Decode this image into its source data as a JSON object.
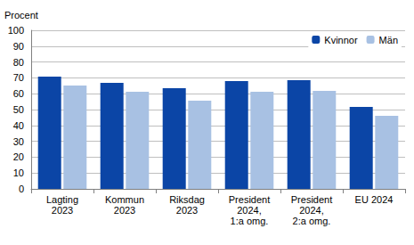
{
  "chart_data": {
    "type": "bar",
    "ylabel": "Procent",
    "categories": [
      "Lagting\n2023",
      "Kommun\n2023",
      "Riksdag\n2023",
      "President\n2024,\n1:a omg.",
      "President\n2024,\n2:a omg.",
      "EU 2024"
    ],
    "series": [
      {
        "name": "Kvinnor",
        "color": "#0b45a6",
        "values": [
          70.8,
          66.9,
          63.5,
          68.0,
          68.5,
          51.7
        ]
      },
      {
        "name": "Män",
        "color": "#a8c1e3",
        "values": [
          65.2,
          61.2,
          55.6,
          61.2,
          61.8,
          46.0
        ]
      }
    ],
    "ylim": [
      0,
      100
    ],
    "yticks": [
      0,
      10,
      20,
      30,
      40,
      50,
      60,
      70,
      80,
      90,
      100
    ],
    "grid": true,
    "legend": "top-right"
  }
}
